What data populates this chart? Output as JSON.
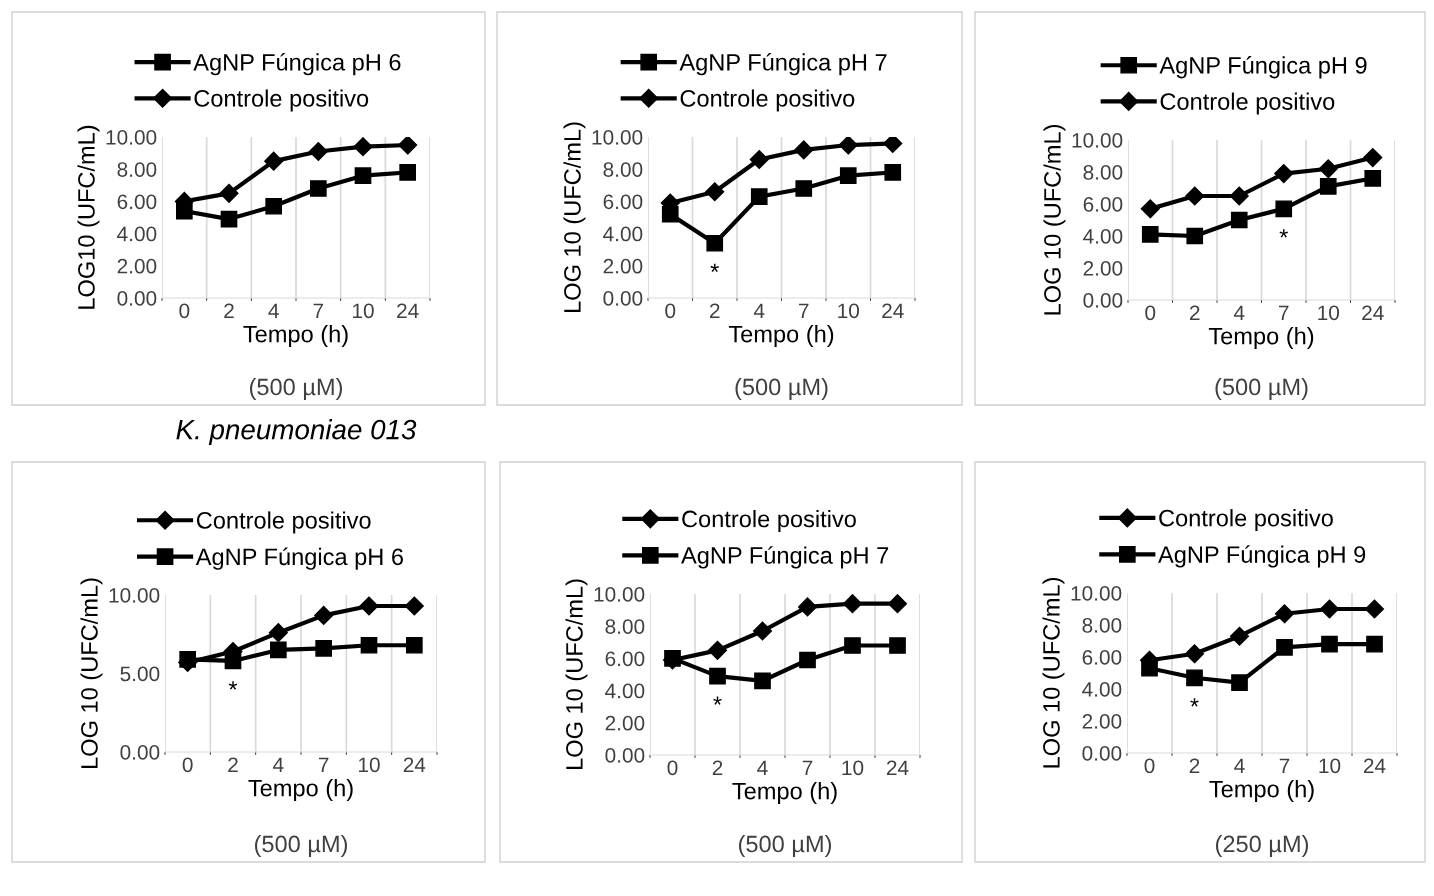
{
  "chart_data": [
    {
      "type": "line",
      "ylabel": "LOG10 (UFC/mL)",
      "xlabel": "Tempo (h)",
      "categories": [
        "0",
        "2",
        "4",
        "7",
        "10",
        "24"
      ],
      "ylim": [
        0,
        10
      ],
      "yticks": [
        {
          "value": 0,
          "label": "0.00"
        },
        {
          "value": 2,
          "label": "2.00"
        },
        {
          "value": 4,
          "label": "4.00"
        },
        {
          "value": 6,
          "label": "6.00"
        },
        {
          "value": 8,
          "label": "8.00"
        },
        {
          "value": 10,
          "label": "10.00"
        }
      ],
      "grid": "x",
      "legend": "top",
      "series": [
        {
          "name": "AgNP Fúngica pH 6",
          "color": "#000000",
          "marker": "square",
          "values": [
            5.4,
            4.9,
            5.7,
            6.8,
            7.6,
            7.8
          ]
        },
        {
          "name": "Controle positivo",
          "color": "#000000",
          "marker": "diamond",
          "values": [
            6.0,
            6.5,
            8.5,
            9.1,
            9.4,
            9.5
          ]
        }
      ],
      "annotations": [
        "(500 µM)",
        "K. pneumoniae 013"
      ]
    },
    {
      "type": "line",
      "ylabel": "LOG 10 (UFC/mL)",
      "xlabel": "Tempo (h)",
      "categories": [
        "0",
        "2",
        "4",
        "7",
        "10",
        "24"
      ],
      "ylim": [
        0,
        10
      ],
      "yticks": [
        {
          "value": 0,
          "label": "0.00"
        },
        {
          "value": 2,
          "label": "2.00"
        },
        {
          "value": 4,
          "label": "4.00"
        },
        {
          "value": 6,
          "label": "6.00"
        },
        {
          "value": 8,
          "label": "8.00"
        },
        {
          "value": 10,
          "label": "10.00"
        }
      ],
      "grid": "x",
      "legend": "top",
      "series": [
        {
          "name": "AgNP Fúngica pH 7",
          "color": "#000000",
          "marker": "square",
          "values": [
            5.2,
            3.4,
            6.3,
            6.8,
            7.6,
            7.8
          ]
        },
        {
          "name": "Controle positivo",
          "color": "#000000",
          "marker": "diamond",
          "values": [
            5.9,
            6.6,
            8.6,
            9.2,
            9.5,
            9.6
          ]
        }
      ],
      "annotations": [
        {
          "text": "*",
          "x": "2",
          "y": 3.4
        },
        "(500 µM)"
      ]
    },
    {
      "type": "line",
      "ylabel": "LOG 10 (UFC/mL)",
      "xlabel": "Tempo (h)",
      "categories": [
        "0",
        "2",
        "4",
        "7",
        "10",
        "24"
      ],
      "ylim": [
        0,
        10
      ],
      "yticks": [
        {
          "value": 0,
          "label": "0.00"
        },
        {
          "value": 2,
          "label": "2.00"
        },
        {
          "value": 4,
          "label": "4.00"
        },
        {
          "value": 6,
          "label": "6.00"
        },
        {
          "value": 8,
          "label": "8.00"
        },
        {
          "value": 10,
          "label": "10.00"
        }
      ],
      "grid": "x",
      "legend": "top",
      "series": [
        {
          "name": "AgNP Fúngica pH 9",
          "color": "#000000",
          "marker": "square",
          "values": [
            4.1,
            4.0,
            5.0,
            5.7,
            7.1,
            7.6
          ]
        },
        {
          "name": "Controle positivo",
          "color": "#000000",
          "marker": "diamond",
          "values": [
            5.7,
            6.5,
            6.5,
            7.9,
            8.2,
            8.9
          ]
        }
      ],
      "annotations": [
        {
          "text": "*",
          "x": "7",
          "y": 5.7
        },
        "(500 µM)"
      ]
    },
    {
      "type": "line",
      "ylabel": "LOG 10 (UFC/mL)",
      "xlabel": "Tempo (h)",
      "categories": [
        "0",
        "2",
        "4",
        "7",
        "10",
        "24"
      ],
      "ylim": [
        0,
        10
      ],
      "yticks": [
        {
          "value": 0,
          "label": "0.00"
        },
        {
          "value": 5,
          "label": "5.00"
        },
        {
          "value": 10,
          "label": "10.00"
        }
      ],
      "grid": "x",
      "legend": "top",
      "series": [
        {
          "name": "Controle positivo",
          "color": "#000000",
          "marker": "diamond",
          "values": [
            5.7,
            6.4,
            7.6,
            8.7,
            9.3,
            9.3
          ]
        },
        {
          "name": "AgNP Fúngica pH 6",
          "color": "#000000",
          "marker": "square",
          "values": [
            5.9,
            5.8,
            6.5,
            6.6,
            6.8,
            6.8
          ]
        }
      ],
      "annotations": [
        {
          "text": "*",
          "x": "2",
          "y": 5.8
        },
        "(500 µM)"
      ]
    },
    {
      "type": "line",
      "ylabel": "LOG 10 (UFC/mL)",
      "xlabel": "Tempo (h)",
      "categories": [
        "0",
        "2",
        "4",
        "7",
        "10",
        "24"
      ],
      "ylim": [
        0,
        10
      ],
      "yticks": [
        {
          "value": 0,
          "label": "0.00"
        },
        {
          "value": 2,
          "label": "2.00"
        },
        {
          "value": 4,
          "label": "4.00"
        },
        {
          "value": 6,
          "label": "6.00"
        },
        {
          "value": 8,
          "label": "8.00"
        },
        {
          "value": 10,
          "label": "10.00"
        }
      ],
      "grid": "x",
      "legend": "top",
      "series": [
        {
          "name": "Controle positivo",
          "color": "#000000",
          "marker": "diamond",
          "values": [
            5.9,
            6.5,
            7.7,
            9.2,
            9.4,
            9.4
          ]
        },
        {
          "name": "AgNP Fúngica pH 7",
          "color": "#000000",
          "marker": "square",
          "values": [
            6.0,
            4.9,
            4.6,
            5.9,
            6.8,
            6.8
          ]
        }
      ],
      "annotations": [
        {
          "text": "*",
          "x": "2",
          "y": 4.9
        },
        "(500 µM)"
      ]
    },
    {
      "type": "line",
      "ylabel": "LOG 10 (UFC/mL)",
      "xlabel": "Tempo (h)",
      "categories": [
        "0",
        "2",
        "4",
        "7",
        "10",
        "24"
      ],
      "ylim": [
        0,
        10
      ],
      "yticks": [
        {
          "value": 0,
          "label": "0.00"
        },
        {
          "value": 2,
          "label": "2.00"
        },
        {
          "value": 4,
          "label": "4.00"
        },
        {
          "value": 6,
          "label": "6.00"
        },
        {
          "value": 8,
          "label": "8.00"
        },
        {
          "value": 10,
          "label": "10.00"
        }
      ],
      "grid": "x",
      "legend": "top",
      "series": [
        {
          "name": "Controle positivo",
          "color": "#000000",
          "marker": "diamond",
          "values": [
            5.8,
            6.2,
            7.3,
            8.7,
            9.0,
            9.0
          ]
        },
        {
          "name": "AgNP Fúngica pH 9",
          "color": "#000000",
          "marker": "square",
          "values": [
            5.3,
            4.7,
            4.4,
            6.6,
            6.8,
            6.8
          ]
        }
      ],
      "annotations": [
        {
          "text": "*",
          "x": "2",
          "y": 4.7
        },
        "(250 µM)"
      ]
    }
  ]
}
